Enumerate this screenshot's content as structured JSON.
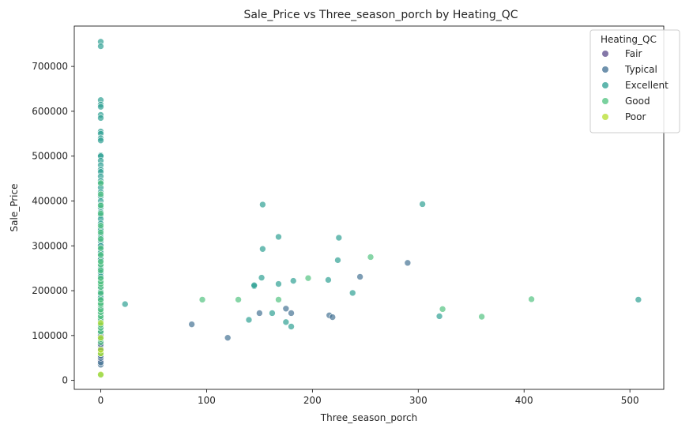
{
  "chart_data": {
    "type": "scatter",
    "title": "Sale_Price vs Three_season_porch by Heating_QC",
    "xlabel": "Three_season_porch",
    "ylabel": "Sale_Price",
    "xlim": [
      -25,
      532
    ],
    "ylim": [
      -20000,
      790000
    ],
    "xticks": [
      0,
      100,
      200,
      300,
      400,
      500
    ],
    "yticks": [
      0,
      100000,
      200000,
      300000,
      400000,
      500000,
      600000,
      700000
    ],
    "grid": false,
    "legend": {
      "title": "Heating_QC",
      "placement": "top-right"
    },
    "series": [
      {
        "name": "Fair",
        "color": "#5b4a8b",
        "points": [
          [
            0,
            45000
          ],
          [
            0,
            60000
          ],
          [
            0,
            75000
          ],
          [
            0,
            82000
          ],
          [
            0,
            90000
          ],
          [
            0,
            98000
          ],
          [
            0,
            105000
          ],
          [
            0,
            110000
          ],
          [
            0,
            115000
          ],
          [
            0,
            120000
          ],
          [
            0,
            128000
          ],
          [
            0,
            135000
          ],
          [
            0,
            140000
          ],
          [
            0,
            150000
          ],
          [
            0,
            160000
          ]
        ]
      },
      {
        "name": "Typical",
        "color": "#3f6e91",
        "points": [
          [
            0,
            35000
          ],
          [
            0,
            40000
          ],
          [
            0,
            50000
          ],
          [
            0,
            55000
          ],
          [
            0,
            65000
          ],
          [
            0,
            70000
          ],
          [
            0,
            80000
          ],
          [
            0,
            88000
          ],
          [
            0,
            95000
          ],
          [
            0,
            100000
          ],
          [
            0,
            112000
          ],
          [
            0,
            118000
          ],
          [
            0,
            125000
          ],
          [
            0,
            130000
          ],
          [
            0,
            138000
          ],
          [
            0,
            145000
          ],
          [
            0,
            155000
          ],
          [
            0,
            165000
          ],
          [
            0,
            175000
          ],
          [
            0,
            185000
          ],
          [
            0,
            190000
          ],
          [
            0,
            210000
          ],
          [
            0,
            230000
          ],
          [
            0,
            250000
          ],
          [
            0,
            270000
          ],
          [
            0,
            300000
          ],
          [
            86,
            125000
          ],
          [
            120,
            95000
          ],
          [
            150,
            150000
          ],
          [
            175,
            160000
          ],
          [
            180,
            150000
          ],
          [
            216,
            145000
          ],
          [
            219,
            141000
          ],
          [
            245,
            231000
          ],
          [
            290,
            262000
          ]
        ]
      },
      {
        "name": "Excellent",
        "color": "#2a9d91",
        "points": [
          [
            0,
            755000
          ],
          [
            0,
            745000
          ],
          [
            0,
            625000
          ],
          [
            0,
            615000
          ],
          [
            0,
            610000
          ],
          [
            0,
            592000
          ],
          [
            0,
            585000
          ],
          [
            0,
            555000
          ],
          [
            0,
            550000
          ],
          [
            0,
            540000
          ],
          [
            0,
            535000
          ],
          [
            0,
            502000
          ],
          [
            0,
            500000
          ],
          [
            0,
            490000
          ],
          [
            0,
            480000
          ],
          [
            0,
            470000
          ],
          [
            0,
            465000
          ],
          [
            0,
            455000
          ],
          [
            0,
            445000
          ],
          [
            0,
            438000
          ],
          [
            0,
            430000
          ],
          [
            0,
            420000
          ],
          [
            0,
            410000
          ],
          [
            0,
            400000
          ],
          [
            0,
            392000
          ],
          [
            0,
            385000
          ],
          [
            0,
            375000
          ],
          [
            0,
            368000
          ],
          [
            0,
            360000
          ],
          [
            0,
            350000
          ],
          [
            0,
            340000
          ],
          [
            0,
            335000
          ],
          [
            0,
            325000
          ],
          [
            0,
            318000
          ],
          [
            0,
            310000
          ],
          [
            0,
            300000
          ],
          [
            0,
            292000
          ],
          [
            0,
            285000
          ],
          [
            0,
            278000
          ],
          [
            0,
            270000
          ],
          [
            0,
            262000
          ],
          [
            0,
            255000
          ],
          [
            0,
            248000
          ],
          [
            0,
            240000
          ],
          [
            0,
            232000
          ],
          [
            0,
            225000
          ],
          [
            0,
            218000
          ],
          [
            0,
            212000
          ],
          [
            0,
            205000
          ],
          [
            0,
            198000
          ],
          [
            0,
            192000
          ],
          [
            0,
            185000
          ],
          [
            0,
            178000
          ],
          [
            0,
            170000
          ],
          [
            0,
            162000
          ],
          [
            0,
            155000
          ],
          [
            0,
            148000
          ],
          [
            0,
            140000
          ],
          [
            0,
            132000
          ],
          [
            0,
            122000
          ],
          [
            0,
            110000
          ],
          [
            23,
            170000
          ],
          [
            140,
            135000
          ],
          [
            145,
            210000
          ],
          [
            145,
            212000
          ],
          [
            152,
            229000
          ],
          [
            153,
            293000
          ],
          [
            153,
            392000
          ],
          [
            162,
            150000
          ],
          [
            168,
            320000
          ],
          [
            168,
            215000
          ],
          [
            175,
            130000
          ],
          [
            180,
            120000
          ],
          [
            182,
            222000
          ],
          [
            215,
            224000
          ],
          [
            224,
            268000
          ],
          [
            225,
            318000
          ],
          [
            238,
            195000
          ],
          [
            304,
            393000
          ],
          [
            320,
            143000
          ],
          [
            508,
            180000
          ]
        ]
      },
      {
        "name": "Good",
        "color": "#4ec17e",
        "points": [
          [
            0,
            12000
          ],
          [
            0,
            60000
          ],
          [
            0,
            85000
          ],
          [
            0,
            92000
          ],
          [
            0,
            108000
          ],
          [
            0,
            117000
          ],
          [
            0,
            124000
          ],
          [
            0,
            137000
          ],
          [
            0,
            143000
          ],
          [
            0,
            152000
          ],
          [
            0,
            158000
          ],
          [
            0,
            168000
          ],
          [
            0,
            172000
          ],
          [
            0,
            180000
          ],
          [
            0,
            195000
          ],
          [
            0,
            208000
          ],
          [
            0,
            215000
          ],
          [
            0,
            220000
          ],
          [
            0,
            228000
          ],
          [
            0,
            245000
          ],
          [
            0,
            258000
          ],
          [
            0,
            265000
          ],
          [
            0,
            280000
          ],
          [
            0,
            295000
          ],
          [
            0,
            315000
          ],
          [
            0,
            330000
          ],
          [
            0,
            345000
          ],
          [
            0,
            372000
          ],
          [
            0,
            390000
          ],
          [
            0,
            415000
          ],
          [
            0,
            440000
          ],
          [
            96,
            180000
          ],
          [
            130,
            180000
          ],
          [
            168,
            180000
          ],
          [
            196,
            228000
          ],
          [
            255,
            275000
          ],
          [
            323,
            159000
          ],
          [
            360,
            142000
          ],
          [
            407,
            181000
          ]
        ]
      },
      {
        "name": "Poor",
        "color": "#b6de2b",
        "points": [
          [
            0,
            13000
          ],
          [
            0,
            60000
          ],
          [
            0,
            68000
          ],
          [
            0,
            95000
          ],
          [
            0,
            128000
          ]
        ]
      }
    ]
  }
}
